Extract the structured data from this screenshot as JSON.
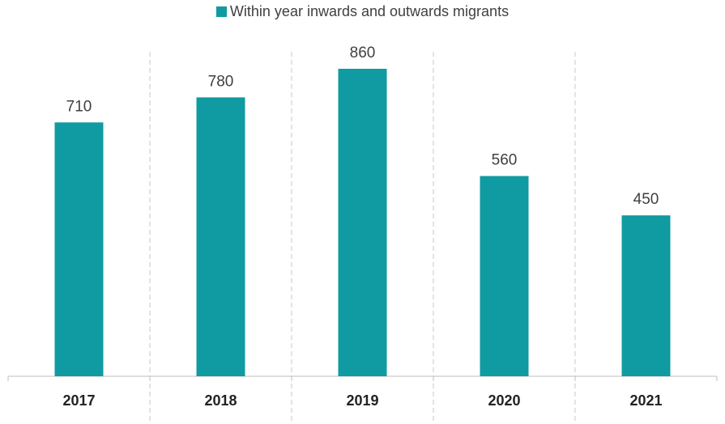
{
  "chart_data": {
    "type": "bar",
    "categories": [
      "2017",
      "2018",
      "2019",
      "2020",
      "2021"
    ],
    "series": [
      {
        "name": "Within year inwards and outwards migrants",
        "values": [
          710,
          780,
          860,
          560,
          450
        ],
        "color": "#0f9ba1"
      }
    ],
    "data_labels": [
      "710",
      "780",
      "860",
      "560",
      "450"
    ],
    "title": "",
    "xlabel": "",
    "ylabel": "",
    "ylim": [
      0,
      860
    ],
    "y_axis_shown": false,
    "grid": "vertical dashed separators between categories",
    "legend_position": "top-center"
  }
}
